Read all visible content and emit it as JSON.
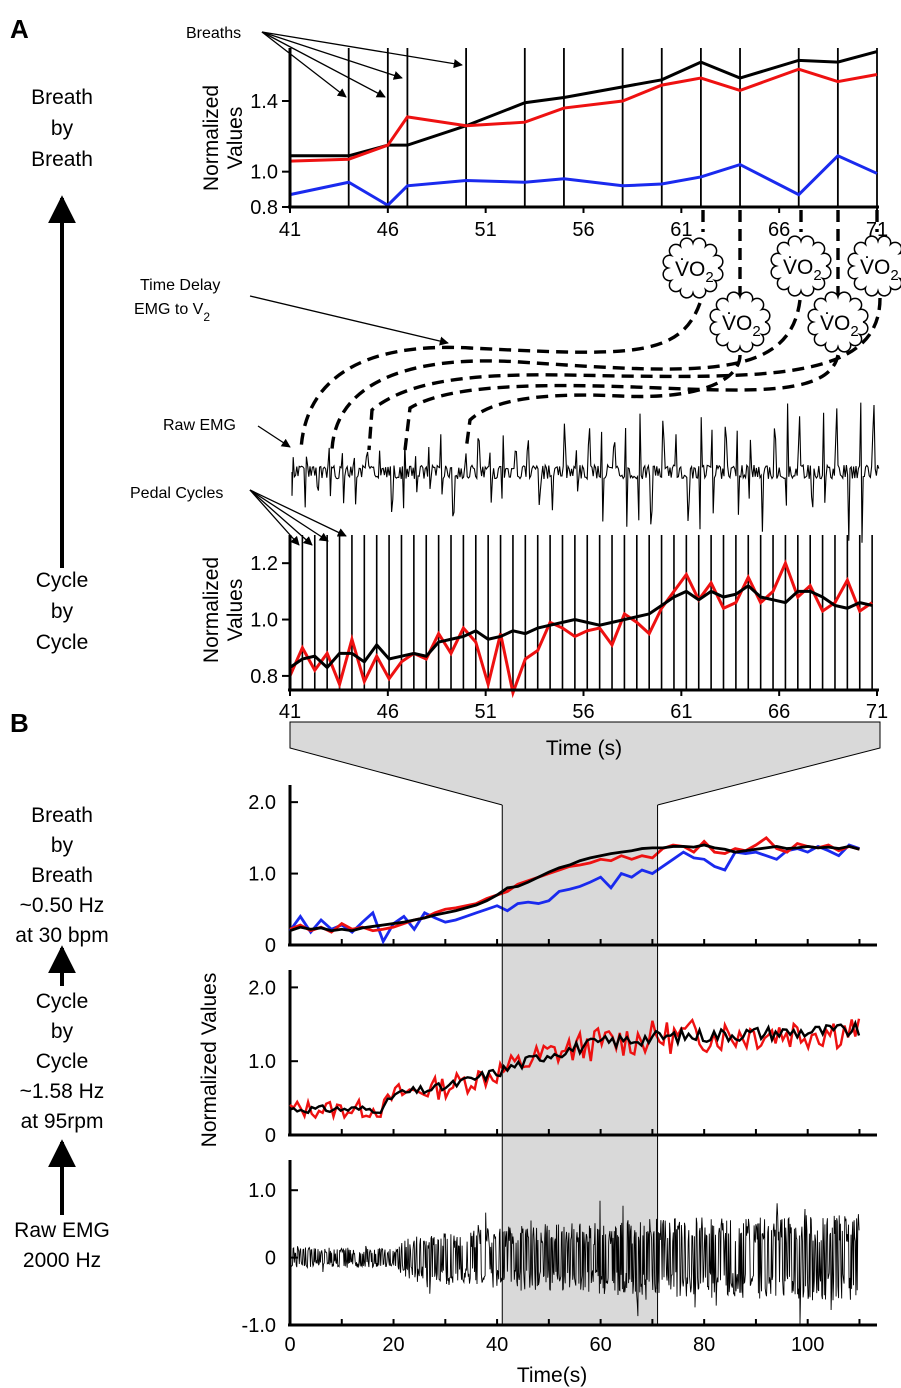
{
  "panel_labels": {
    "a": "A",
    "b": "B"
  },
  "a_side": {
    "top": [
      "Breath",
      "by",
      "Breath"
    ],
    "bottom": [
      "Cycle",
      "by",
      "Cycle"
    ]
  },
  "b_side": {
    "breath": [
      "Breath",
      "by",
      "Breath",
      "~0.50 Hz",
      "at 30 bpm"
    ],
    "cycle": [
      "Cycle",
      "by",
      "Cycle",
      "~1.58 Hz",
      "at 95rpm"
    ],
    "raw": [
      "Raw EMG",
      "2000 Hz"
    ]
  },
  "annotations": {
    "breaths": "Breaths",
    "time_delay": "Time Delay",
    "emg_to": "EMG to",
    "vo2": "VO",
    "vo2_sub": "2",
    "raw_emg": "Raw EMG",
    "pedal_cycles": "Pedal Cycles"
  },
  "colors": {
    "black": "#000000",
    "red": "#ee1111",
    "blue": "#1a2aee",
    "shade": "#d9d9d9"
  },
  "chart_data": [
    {
      "type": "line",
      "id": "A-breath",
      "ylabel": "Normalized Values",
      "ylabel_lines": [
        "Normalized",
        "Values"
      ],
      "xlim": [
        41,
        71
      ],
      "ylim": [
        0.8,
        1.7
      ],
      "xticks": [
        41,
        46,
        51,
        56,
        61,
        66,
        71
      ],
      "yticks": [
        0.8,
        1.0,
        1.4
      ],
      "breath_times": [
        41,
        44,
        46,
        47,
        50,
        53,
        55,
        58,
        60,
        62,
        64,
        67,
        69,
        71
      ],
      "series": [
        {
          "color": "black",
          "values": [
            1.09,
            1.09,
            1.15,
            1.15,
            1.26,
            1.39,
            1.42,
            1.48,
            1.52,
            1.62,
            1.53,
            1.63,
            1.62,
            1.68
          ]
        },
        {
          "color": "red",
          "values": [
            1.06,
            1.07,
            1.15,
            1.31,
            1.26,
            1.28,
            1.36,
            1.4,
            1.49,
            1.53,
            1.46,
            1.58,
            1.51,
            1.55
          ]
        },
        {
          "color": "blue",
          "values": [
            0.87,
            0.94,
            0.81,
            0.92,
            0.95,
            0.94,
            0.96,
            0.92,
            0.93,
            0.97,
            1.04,
            0.87,
            1.09,
            0.99
          ]
        }
      ]
    },
    {
      "type": "line",
      "id": "A-cycle",
      "ylabel": "Normalized Values",
      "ylabel_lines": [
        "Normalized",
        "Values"
      ],
      "xlabel": "Time (s)",
      "xlim": [
        41,
        71
      ],
      "ylim": [
        0.75,
        1.3
      ],
      "xticks": [
        41,
        46,
        51,
        56,
        61,
        66,
        71
      ],
      "yticks": [
        0.8,
        1.0,
        1.2
      ],
      "cycle_start": 41,
      "cycle_period": 0.633,
      "series": [
        {
          "color": "red",
          "values": [
            0.8,
            0.9,
            0.82,
            0.88,
            0.77,
            0.93,
            0.78,
            0.87,
            0.79,
            0.85,
            0.88,
            0.86,
            0.95,
            0.88,
            0.97,
            0.92,
            0.77,
            0.95,
            0.74,
            0.86,
            0.89,
            0.99,
            0.97,
            0.94,
            0.96,
            0.97,
            0.91,
            1.02,
            0.99,
            0.95,
            1.04,
            1.1,
            1.16,
            1.07,
            1.13,
            1.04,
            1.06,
            1.15,
            1.06,
            1.1,
            1.2,
            1.08,
            1.12,
            1.03,
            1.06,
            1.14,
            1.03,
            1.06,
            1.15,
            1.05,
            1.1,
            1.13,
            1.02,
            1.06,
            1.15,
            1.05,
            1.07,
            1.13
          ]
        },
        {
          "color": "black",
          "values": [
            0.83,
            0.86,
            0.87,
            0.83,
            0.88,
            0.88,
            0.85,
            0.91,
            0.86,
            0.87,
            0.88,
            0.87,
            0.92,
            0.93,
            0.94,
            0.96,
            0.93,
            0.94,
            0.96,
            0.95,
            0.97,
            0.98,
            0.99,
            1.0,
            0.99,
            0.98,
            0.99,
            1.0,
            1.01,
            1.02,
            1.05,
            1.08,
            1.1,
            1.07,
            1.1,
            1.08,
            1.09,
            1.12,
            1.08,
            1.07,
            1.06,
            1.1,
            1.1,
            1.08,
            1.05,
            1.04,
            1.06,
            1.05,
            1.08,
            1.07,
            1.1,
            1.08,
            1.06,
            1.07,
            1.08,
            1.07,
            1.07,
            1.1
          ]
        }
      ]
    },
    {
      "type": "line",
      "id": "B-breath",
      "xlim": [
        0,
        113
      ],
      "ylim": [
        0,
        2.1
      ],
      "yticks": [
        0,
        1.0,
        2.0
      ],
      "ytick_labels": [
        "0",
        "1.0",
        "2.0"
      ],
      "series": [
        {
          "color": "blue",
          "x": [
            0,
            2,
            4,
            6,
            8,
            10,
            12,
            14,
            16,
            18,
            20,
            22,
            24,
            26,
            28,
            30,
            32,
            34,
            36,
            38,
            40,
            42,
            44,
            46,
            48,
            50,
            52,
            54,
            56,
            58,
            60,
            62,
            64,
            66,
            68,
            70,
            72,
            74,
            76,
            78,
            80,
            82,
            84,
            86,
            88,
            90,
            92,
            94,
            96,
            98,
            100,
            102,
            104,
            106,
            108,
            110
          ],
          "values": [
            0.2,
            0.4,
            0.18,
            0.35,
            0.22,
            0.28,
            0.18,
            0.32,
            0.45,
            0.05,
            0.3,
            0.4,
            0.22,
            0.45,
            0.38,
            0.32,
            0.35,
            0.4,
            0.45,
            0.5,
            0.55,
            0.48,
            0.58,
            0.6,
            0.58,
            0.62,
            0.75,
            0.78,
            0.82,
            0.88,
            0.95,
            0.8,
            1.0,
            0.95,
            1.05,
            1.0,
            1.1,
            1.2,
            1.3,
            1.22,
            1.2,
            1.1,
            1.05,
            1.3,
            1.28,
            1.3,
            1.25,
            1.2,
            1.32,
            1.35,
            1.3,
            1.38,
            1.32,
            1.25,
            1.4,
            1.35
          ]
        },
        {
          "color": "red",
          "x": [
            0,
            2,
            4,
            6,
            8,
            10,
            12,
            14,
            16,
            18,
            20,
            22,
            24,
            26,
            28,
            30,
            32,
            34,
            36,
            38,
            40,
            42,
            44,
            46,
            48,
            50,
            52,
            54,
            56,
            58,
            60,
            62,
            64,
            66,
            68,
            70,
            72,
            74,
            76,
            78,
            80,
            82,
            84,
            86,
            88,
            90,
            92,
            94,
            96,
            98,
            100,
            102,
            104,
            106,
            108,
            110
          ],
          "values": [
            0.22,
            0.28,
            0.2,
            0.25,
            0.18,
            0.3,
            0.22,
            0.25,
            0.2,
            0.22,
            0.25,
            0.3,
            0.35,
            0.38,
            0.45,
            0.5,
            0.52,
            0.55,
            0.58,
            0.65,
            0.7,
            0.75,
            0.85,
            0.9,
            0.95,
            1.0,
            1.05,
            1.1,
            1.12,
            1.15,
            1.2,
            1.18,
            1.25,
            1.2,
            1.25,
            1.22,
            1.35,
            1.4,
            1.38,
            1.3,
            1.45,
            1.3,
            1.28,
            1.35,
            1.32,
            1.4,
            1.5,
            1.35,
            1.3,
            1.42,
            1.38,
            1.36,
            1.4,
            1.32,
            1.38,
            1.34
          ]
        },
        {
          "color": "black",
          "x": [
            0,
            2,
            4,
            6,
            8,
            10,
            12,
            14,
            16,
            18,
            20,
            22,
            24,
            26,
            28,
            30,
            32,
            34,
            36,
            38,
            40,
            42,
            44,
            46,
            48,
            50,
            52,
            54,
            56,
            58,
            60,
            62,
            64,
            66,
            68,
            70,
            72,
            74,
            76,
            78,
            80,
            82,
            84,
            86,
            88,
            90,
            92,
            94,
            96,
            98,
            100,
            102,
            104,
            106,
            108,
            110
          ],
          "values": [
            0.2,
            0.25,
            0.22,
            0.24,
            0.2,
            0.22,
            0.2,
            0.24,
            0.26,
            0.28,
            0.3,
            0.32,
            0.35,
            0.38,
            0.42,
            0.45,
            0.48,
            0.52,
            0.56,
            0.62,
            0.7,
            0.8,
            0.82,
            0.88,
            0.95,
            1.02,
            1.08,
            1.12,
            1.18,
            1.22,
            1.25,
            1.28,
            1.3,
            1.32,
            1.35,
            1.36,
            1.36,
            1.38,
            1.38,
            1.37,
            1.4,
            1.36,
            1.34,
            1.3,
            1.32,
            1.34,
            1.36,
            1.38,
            1.35,
            1.36,
            1.38,
            1.36,
            1.37,
            1.35,
            1.38,
            1.34
          ]
        }
      ]
    },
    {
      "type": "line",
      "id": "B-cycle",
      "ylabel": "Normalized Values",
      "xlim": [
        0,
        113
      ],
      "ylim": [
        0,
        2.1
      ],
      "yticks": [
        0,
        1.0,
        2.0
      ],
      "ytick_labels": [
        "0",
        "1.0",
        "2.0"
      ],
      "trend": {
        "t": [
          0,
          18,
          20,
          30,
          40,
          50,
          60,
          70,
          80,
          90,
          100,
          110
        ],
        "v": [
          0.35,
          0.35,
          0.55,
          0.65,
          0.85,
          1.1,
          1.25,
          1.32,
          1.35,
          1.38,
          1.4,
          1.42
        ]
      },
      "noise": {
        "red": 0.22,
        "black": 0.09,
        "step": 0.7
      },
      "series": [
        {
          "color": "red",
          "name": ""
        },
        {
          "color": "black",
          "name": ""
        }
      ]
    },
    {
      "type": "line",
      "id": "B-raw",
      "xlabel": "Time(s)",
      "xlim": [
        0,
        113
      ],
      "ylim": [
        -1.0,
        1.3
      ],
      "xticks": [
        0,
        20,
        40,
        60,
        80,
        100
      ],
      "yticks": [
        -1.0,
        0,
        1.0
      ],
      "ytick_labels": [
        "-1.0",
        "0",
        "1.0"
      ],
      "envelope": {
        "t": [
          0,
          20,
          22,
          40,
          60,
          80,
          110
        ],
        "amp": [
          0.15,
          0.15,
          0.3,
          0.45,
          0.55,
          0.6,
          0.65
        ]
      },
      "series": [
        {
          "color": "black",
          "name": ""
        }
      ]
    }
  ],
  "highlight": {
    "from_s": 41,
    "to_s": 71
  }
}
